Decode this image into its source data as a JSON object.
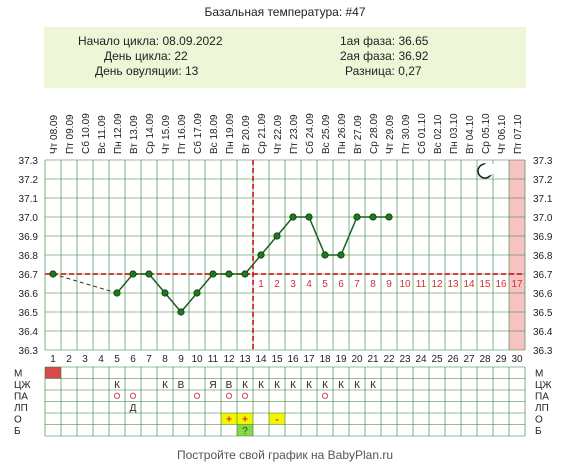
{
  "title": "Базальная температура: #47",
  "info": {
    "left": [
      {
        "label": "Начало цикла:",
        "value": "08.09.2022"
      },
      {
        "label": "День цикла:",
        "value": "22"
      },
      {
        "label": "День овуляции:",
        "value": "13"
      }
    ],
    "right": [
      {
        "label": "1ая фаза:",
        "value": "36.65"
      },
      {
        "label": "2ая фаза:",
        "value": "36.92"
      },
      {
        "label": "Разница:",
        "value": "0,27"
      }
    ]
  },
  "footer": "Постройте свой график на BabyPlan.ru",
  "chart_data": {
    "type": "line",
    "dates": [
      "Чт 08.09",
      "Пт 09.09",
      "Сб 10.09",
      "Вс 11.09",
      "Пн 12.09",
      "Вт 13.09",
      "Ср 14.09",
      "Чт 15.09",
      "Пт 16.09",
      "Сб 17.09",
      "Вс 18.09",
      "Пн 19.09",
      "Вт 20.09",
      "Ср 21.09",
      "Чт 22.09",
      "Пт 23.09",
      "Сб 24.09",
      "Вс 25.09",
      "Пн 26.09",
      "Вт 27.09",
      "Ср 28.09",
      "Чт 29.09",
      "Пт 30.09",
      "Сб 01.10",
      "Вс 02.10",
      "Пн 03.10",
      "Вт 04.10",
      "Ср 05.10",
      "Чт 06.10",
      "Пт 07.10"
    ],
    "days": [
      "1",
      "2",
      "3",
      "4",
      "5",
      "6",
      "7",
      "8",
      "9",
      "10",
      "11",
      "12",
      "13",
      "14",
      "15",
      "16",
      "17",
      "18",
      "19",
      "20",
      "21",
      "22",
      "23",
      "24",
      "25",
      "26",
      "27",
      "28",
      "29",
      "30"
    ],
    "ylim": [
      36.3,
      37.3
    ],
    "yticks": [
      "36.3",
      "36.4",
      "36.5",
      "36.6",
      "36.7",
      "36.8",
      "36.9",
      "37.0",
      "37.1",
      "37.2",
      "37.3"
    ],
    "temps": [
      36.7,
      null,
      null,
      null,
      36.6,
      36.7,
      36.7,
      36.6,
      36.5,
      36.6,
      36.7,
      36.7,
      36.7,
      36.8,
      36.9,
      37.0,
      37.0,
      36.8,
      36.8,
      37.0,
      37.0,
      37.0,
      null,
      null,
      null,
      null,
      null,
      null,
      null,
      null
    ],
    "coverline": 36.7,
    "ovulation_day": 13,
    "luteal_labels": [
      "1",
      "2",
      "3",
      "4",
      "5",
      "6",
      "7",
      "8",
      "9",
      "10",
      "11",
      "12",
      "13",
      "14",
      "15",
      "16",
      "17"
    ],
    "highlight_day": 30,
    "moon_icon": "crescent-moon-icon",
    "row_labels": [
      "М",
      "ЦЖ",
      "ПА",
      "ЛП",
      "О",
      "Б"
    ],
    "rows": {
      "М": {
        "1": "#d84a4a"
      },
      "ЦЖ": {
        "5": "К",
        "8": "К",
        "9": "В",
        "11": "Я",
        "12": "В",
        "13": "К",
        "14": "К",
        "15": "К",
        "16": "К",
        "17": "К",
        "18": "К",
        "19": "К",
        "20": "К",
        "21": "К"
      },
      "ПА": {
        "5": "o",
        "6": "o",
        "10": "o",
        "12": "o",
        "13": "o",
        "18": "o"
      },
      "ЛП": {
        "6": "Д"
      },
      "О": {
        "12": "+",
        "13": "+",
        "15": "-"
      },
      "Б": {
        "13": "?"
      }
    },
    "colors": {
      "grid": "#2e7d32",
      "line": "#1b5e20",
      "point": "#1b7a1b",
      "coverline": "#cc0000",
      "info_bg": "#eef6d8",
      "highlight": "#f7c2c2",
      "row_yellow": "#f5f500",
      "row_green": "#88d84a"
    }
  }
}
